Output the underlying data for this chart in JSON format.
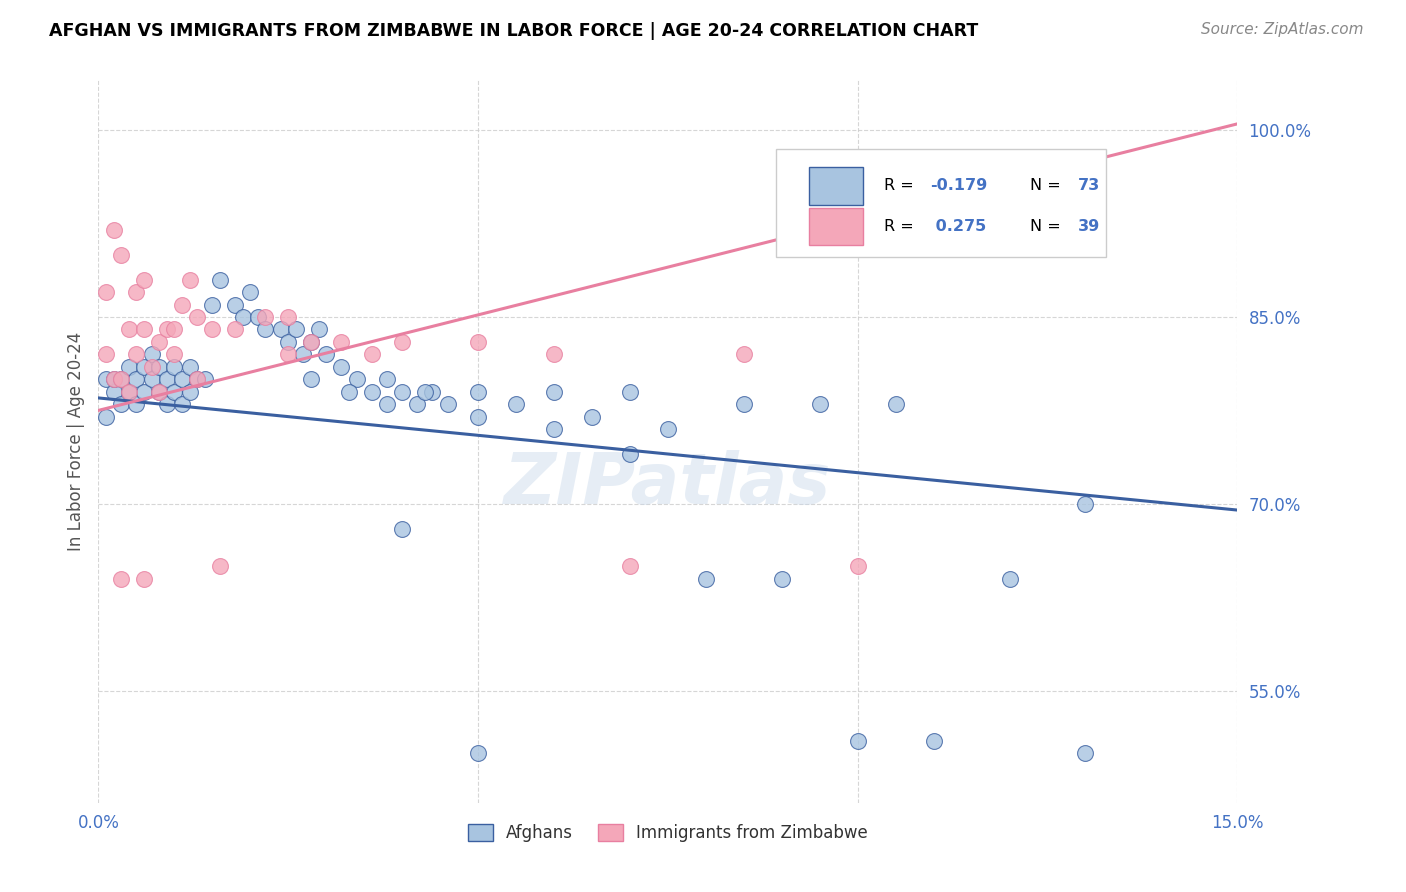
{
  "title": "AFGHAN VS IMMIGRANTS FROM ZIMBABWE IN LABOR FORCE | AGE 20-24 CORRELATION CHART",
  "source": "Source: ZipAtlas.com",
  "ylabel": "In Labor Force | Age 20-24",
  "ytick_values": [
    0.55,
    0.7,
    0.85,
    1.0
  ],
  "xlim": [
    0.0,
    0.15
  ],
  "ylim": [
    0.46,
    1.04
  ],
  "legend_r_afghan": "-0.179",
  "legend_n_afghan": "73",
  "legend_r_zimbabwe": "0.275",
  "legend_n_zimbabwe": "39",
  "afghan_color": "#a8c4e0",
  "zimbabwe_color": "#f4a7b9",
  "afghan_line_color": "#3a5fa0",
  "zimbabwe_line_color": "#e87fa0",
  "watermark": "ZIPatlas",
  "afghan_line_x0": 0.0,
  "afghan_line_y0": 0.785,
  "afghan_line_x1": 0.15,
  "afghan_line_y1": 0.695,
  "zimbabwe_line_x0": 0.0,
  "zimbabwe_line_y0": 0.775,
  "zimbabwe_line_x1": 0.15,
  "zimbabwe_line_y1": 1.005,
  "afghan_x": [
    0.001,
    0.001,
    0.002,
    0.002,
    0.003,
    0.003,
    0.004,
    0.004,
    0.005,
    0.005,
    0.006,
    0.006,
    0.007,
    0.007,
    0.008,
    0.008,
    0.009,
    0.009,
    0.01,
    0.01,
    0.011,
    0.011,
    0.012,
    0.012,
    0.013,
    0.014,
    0.015,
    0.016,
    0.018,
    0.019,
    0.02,
    0.021,
    0.022,
    0.024,
    0.025,
    0.026,
    0.027,
    0.028,
    0.029,
    0.03,
    0.032,
    0.034,
    0.036,
    0.038,
    0.04,
    0.042,
    0.044,
    0.046,
    0.05,
    0.055,
    0.06,
    0.065,
    0.07,
    0.075,
    0.08,
    0.085,
    0.09,
    0.095,
    0.1,
    0.105,
    0.11,
    0.12,
    0.13,
    0.028,
    0.033,
    0.038,
    0.043,
    0.05,
    0.06,
    0.07,
    0.04,
    0.05,
    0.13
  ],
  "afghan_y": [
    0.8,
    0.77,
    0.79,
    0.8,
    0.8,
    0.78,
    0.79,
    0.81,
    0.8,
    0.78,
    0.79,
    0.81,
    0.8,
    0.82,
    0.79,
    0.81,
    0.8,
    0.78,
    0.79,
    0.81,
    0.8,
    0.78,
    0.79,
    0.81,
    0.8,
    0.8,
    0.86,
    0.88,
    0.86,
    0.85,
    0.87,
    0.85,
    0.84,
    0.84,
    0.83,
    0.84,
    0.82,
    0.83,
    0.84,
    0.82,
    0.81,
    0.8,
    0.79,
    0.8,
    0.79,
    0.78,
    0.79,
    0.78,
    0.77,
    0.78,
    0.76,
    0.77,
    0.74,
    0.76,
    0.64,
    0.78,
    0.64,
    0.78,
    0.51,
    0.78,
    0.51,
    0.64,
    0.7,
    0.8,
    0.79,
    0.78,
    0.79,
    0.79,
    0.79,
    0.79,
    0.68,
    0.5,
    0.5
  ],
  "zimbabwe_x": [
    0.001,
    0.001,
    0.002,
    0.002,
    0.003,
    0.003,
    0.004,
    0.004,
    0.005,
    0.005,
    0.006,
    0.006,
    0.007,
    0.008,
    0.009,
    0.01,
    0.011,
    0.012,
    0.013,
    0.015,
    0.018,
    0.022,
    0.025,
    0.028,
    0.032,
    0.036,
    0.04,
    0.05,
    0.06,
    0.07,
    0.085,
    0.1,
    0.003,
    0.006,
    0.008,
    0.01,
    0.013,
    0.016,
    0.025
  ],
  "zimbabwe_y": [
    0.82,
    0.87,
    0.8,
    0.92,
    0.8,
    0.9,
    0.79,
    0.84,
    0.82,
    0.87,
    0.84,
    0.88,
    0.81,
    0.83,
    0.84,
    0.84,
    0.86,
    0.88,
    0.85,
    0.84,
    0.84,
    0.85,
    0.85,
    0.83,
    0.83,
    0.82,
    0.83,
    0.83,
    0.82,
    0.65,
    0.82,
    0.65,
    0.64,
    0.64,
    0.79,
    0.82,
    0.8,
    0.65,
    0.82
  ]
}
